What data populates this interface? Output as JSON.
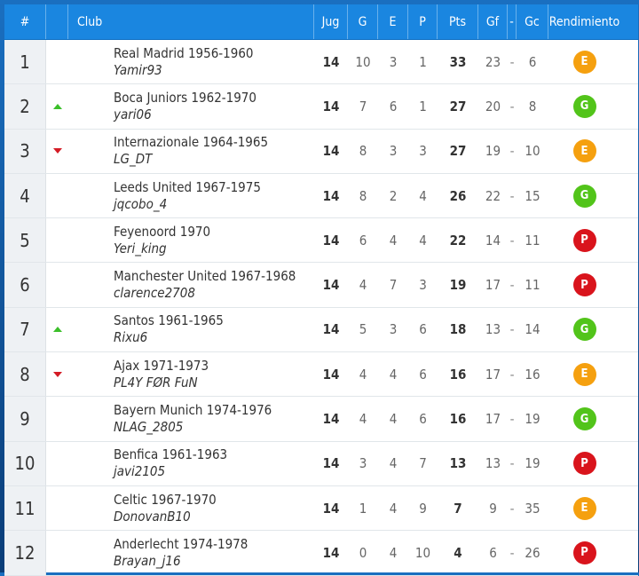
{
  "header": {
    "pos": "#",
    "club": "Club",
    "jug": "Jug",
    "g": "G",
    "e": "E",
    "p": "P",
    "pts": "Pts",
    "gf": "Gf",
    "sep": "-",
    "gc": "Gc",
    "rend": "Rendimiento"
  },
  "colors": {
    "G": "#52c41a",
    "E": "#f5a00f",
    "P": "#d9141c",
    "up": "#3bbf2a",
    "down": "#d41b25"
  },
  "rows": [
    {
      "pos": "1",
      "move": "",
      "team": "Real Madrid 1956-1960",
      "user": "Yamir93",
      "jug": "14",
      "g": "10",
      "e": "3",
      "p": "1",
      "pts": "33",
      "gf": "23",
      "sep": "-",
      "gc": "6",
      "rend": "E"
    },
    {
      "pos": "2",
      "move": "up",
      "team": "Boca Juniors 1962-1970",
      "user": "yari06",
      "jug": "14",
      "g": "7",
      "e": "6",
      "p": "1",
      "pts": "27",
      "gf": "20",
      "sep": "-",
      "gc": "8",
      "rend": "G"
    },
    {
      "pos": "3",
      "move": "down",
      "team": "Internazionale 1964-1965",
      "user": "LG_DT",
      "jug": "14",
      "g": "8",
      "e": "3",
      "p": "3",
      "pts": "27",
      "gf": "19",
      "sep": "-",
      "gc": "10",
      "rend": "E"
    },
    {
      "pos": "4",
      "move": "",
      "team": "Leeds United 1967-1975",
      "user": "jqcobo_4",
      "jug": "14",
      "g": "8",
      "e": "2",
      "p": "4",
      "pts": "26",
      "gf": "22",
      "sep": "-",
      "gc": "15",
      "rend": "G"
    },
    {
      "pos": "5",
      "move": "",
      "team": "Feyenoord 1970",
      "user": "Yeri_king",
      "jug": "14",
      "g": "6",
      "e": "4",
      "p": "4",
      "pts": "22",
      "gf": "14",
      "sep": "-",
      "gc": "11",
      "rend": "P"
    },
    {
      "pos": "6",
      "move": "",
      "team": "Manchester United 1967-1968",
      "user": "clarence2708",
      "jug": "14",
      "g": "4",
      "e": "7",
      "p": "3",
      "pts": "19",
      "gf": "17",
      "sep": "-",
      "gc": "11",
      "rend": "P"
    },
    {
      "pos": "7",
      "move": "up",
      "team": "Santos 1961-1965",
      "user": "Rixu6",
      "jug": "14",
      "g": "5",
      "e": "3",
      "p": "6",
      "pts": "18",
      "gf": "13",
      "sep": "-",
      "gc": "14",
      "rend": "G"
    },
    {
      "pos": "8",
      "move": "down",
      "team": "Ajax 1971-1973",
      "user": "PL4Y FØR FuN",
      "jug": "14",
      "g": "4",
      "e": "4",
      "p": "6",
      "pts": "16",
      "gf": "17",
      "sep": "-",
      "gc": "16",
      "rend": "E"
    },
    {
      "pos": "9",
      "move": "",
      "team": "Bayern Munich 1974-1976",
      "user": "NLAG_2805",
      "jug": "14",
      "g": "4",
      "e": "4",
      "p": "6",
      "pts": "16",
      "gf": "17",
      "sep": "-",
      "gc": "19",
      "rend": "G"
    },
    {
      "pos": "10",
      "move": "",
      "team": "Benfica 1961-1963",
      "user": "javi2105",
      "jug": "14",
      "g": "3",
      "e": "4",
      "p": "7",
      "pts": "13",
      "gf": "13",
      "sep": "-",
      "gc": "19",
      "rend": "P"
    },
    {
      "pos": "11",
      "move": "",
      "team": "Celtic 1967-1970",
      "user": "DonovanB10",
      "jug": "14",
      "g": "1",
      "e": "4",
      "p": "9",
      "pts": "7",
      "gf": "9",
      "sep": "-",
      "gc": "35",
      "rend": "E"
    },
    {
      "pos": "12",
      "move": "",
      "team": "Anderlecht 1974-1978",
      "user": "Brayan_j16",
      "jug": "14",
      "g": "0",
      "e": "4",
      "p": "10",
      "pts": "4",
      "gf": "6",
      "sep": "-",
      "gc": "26",
      "rend": "P"
    }
  ]
}
